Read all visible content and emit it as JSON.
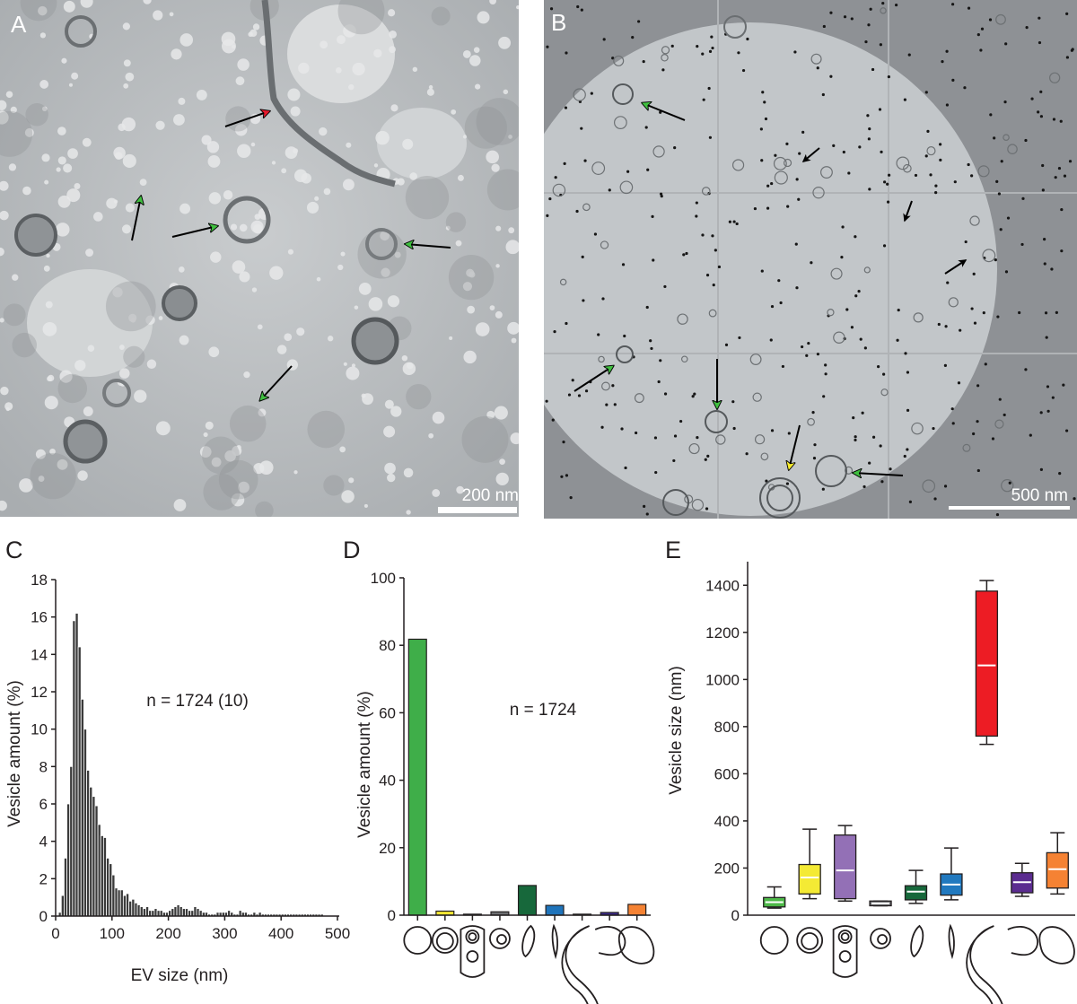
{
  "panel_a": {
    "letter": "A",
    "scale_bar": "200 nm"
  },
  "panel_b": {
    "letter": "B",
    "scale_bar": "500 nm"
  },
  "chart_data": [
    {
      "panel": "C",
      "type": "bar",
      "xlabel": "EV size (nm)",
      "ylabel": "Vesicle amount (%)",
      "annotation": "n = 1724 (10)",
      "xlim": [
        0,
        500
      ],
      "ylim": [
        0,
        18
      ],
      "xticks": [
        0,
        100,
        200,
        300,
        400,
        500
      ],
      "yticks": [
        0,
        2,
        4,
        6,
        8,
        10,
        12,
        14,
        16,
        18
      ],
      "bin_width": 5,
      "bin_start": 5,
      "values": [
        0.2,
        1.1,
        3.1,
        6.0,
        8.0,
        15.8,
        16.2,
        14.4,
        11.6,
        10.0,
        7.8,
        6.9,
        6.4,
        5.9,
        4.9,
        4.3,
        4.2,
        3.1,
        2.8,
        2.2,
        1.5,
        1.4,
        1.4,
        1.1,
        1.2,
        0.8,
        0.9,
        0.7,
        0.6,
        0.5,
        0.4,
        0.5,
        0.3,
        0.3,
        0.4,
        0.3,
        0.3,
        0.2,
        0.2,
        0.3,
        0.4,
        0.5,
        0.6,
        0.5,
        0.4,
        0.4,
        0.3,
        0.3,
        0.5,
        0.4,
        0.3,
        0.2,
        0.2,
        0.1,
        0.1,
        0.1,
        0.2,
        0.2,
        0.2,
        0.2,
        0.3,
        0.2,
        0.1,
        0.1,
        0.3,
        0.2,
        0.2,
        0.1,
        0.1,
        0.2,
        0.1,
        0.2,
        0.1,
        0.1,
        0.1,
        0.1,
        0.1,
        0.1,
        0.1,
        0.1,
        0.1,
        0.1,
        0.1,
        0.1,
        0.1,
        0.1,
        0.1,
        0.1,
        0.1,
        0.1,
        0.1,
        0.1,
        0.1,
        0.1
      ]
    },
    {
      "panel": "D",
      "type": "bar",
      "ylabel": "Vesicle amount (%)",
      "annotation": "n = 1724",
      "ylim": [
        0,
        100
      ],
      "yticks": [
        0,
        20,
        40,
        60,
        80,
        100
      ],
      "values": [
        81.8,
        1.2,
        0.3,
        1.0,
        8.8,
        2.9,
        0.3,
        0.8,
        3.2
      ],
      "colors": [
        "#3fae49",
        "#f4e733",
        "#9b6bb8",
        "#6d6e71",
        "#17683b",
        "#1f74bb",
        "#ed1c24",
        "#3b2a8c",
        "#f58233"
      ]
    },
    {
      "panel": "E",
      "type": "box",
      "ylabel": "Vesicle size (nm)",
      "ylim": [
        0,
        1500
      ],
      "yticks": [
        0,
        200,
        400,
        600,
        800,
        1000,
        1200,
        1400
      ],
      "boxes": [
        {
          "min": 30,
          "q1": 35,
          "median": 55,
          "q3": 75,
          "max": 120,
          "color": "#4db848"
        },
        {
          "min": 70,
          "q1": 90,
          "median": 160,
          "q3": 215,
          "max": 365,
          "color": "#f4ea34"
        },
        {
          "min": 60,
          "q1": 70,
          "median": 190,
          "q3": 340,
          "max": 380,
          "color": "#9370b6"
        },
        {
          "min": 40,
          "q1": 40,
          "median": 50,
          "q3": 60,
          "max": 60,
          "color": "#6d6e71"
        },
        {
          "min": 50,
          "q1": 65,
          "median": 100,
          "q3": 125,
          "max": 190,
          "color": "#17683b"
        },
        {
          "min": 65,
          "q1": 85,
          "median": 130,
          "q3": 175,
          "max": 285,
          "color": "#2179bf"
        },
        {
          "min": 725,
          "q1": 760,
          "median": 1060,
          "q3": 1375,
          "max": 1420,
          "color": "#ed1c24"
        },
        {
          "min": 80,
          "q1": 95,
          "median": 140,
          "q3": 180,
          "max": 220,
          "color": "#5b2c90"
        },
        {
          "min": 90,
          "q1": 115,
          "median": 195,
          "q3": 265,
          "max": 350,
          "color": "#f58233"
        }
      ]
    }
  ],
  "panel_letters": {
    "c": "C",
    "d": "D",
    "e": "E"
  }
}
